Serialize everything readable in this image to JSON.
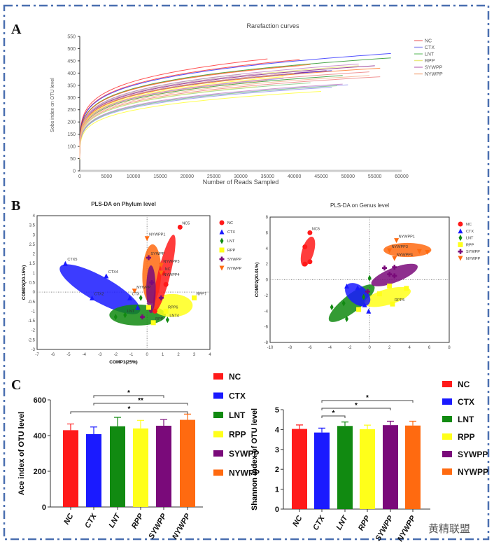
{
  "panels": {
    "a": "A",
    "b": "B",
    "c": "C"
  },
  "watermark": "黄精联盟",
  "groups": [
    "NC",
    "CTX",
    "LNT",
    "RPP",
    "SYWPP",
    "NYWPP"
  ],
  "colors": {
    "NC": "#ff1a1a",
    "CTX": "#1a1aff",
    "LNT": "#118a11",
    "RPP": "#ffff1a",
    "SYWPP": "#7a0a7a",
    "NYWPP": "#ff6a10"
  },
  "pale_colors": {
    "NC": "#f08a8a",
    "CTX": "#9a9af0",
    "LNT": "#8ccf8c",
    "RPP": "#eaea80",
    "SYWPP": "#c88ac8",
    "NYWPP": "#f6b896"
  },
  "chart_data": [
    {
      "type": "line",
      "title": "Rarefaction curves",
      "xlabel": "Number of Reads Sampled",
      "ylabel": "Sobs index on OTU level",
      "xlim": [
        0,
        60000
      ],
      "ylim": [
        0,
        550
      ],
      "xticks": [
        0,
        5000,
        10000,
        15000,
        20000,
        25000,
        30000,
        35000,
        40000,
        45000,
        50000,
        55000,
        60000
      ],
      "yticks": [
        0,
        50,
        100,
        150,
        200,
        250,
        300,
        350,
        400,
        450,
        500,
        550
      ],
      "legend": [
        "NC",
        "CTX",
        "LNT",
        "RPP",
        "SYWPP",
        "NYWPP"
      ],
      "legend_position": "top-right",
      "curves": [
        {
          "group": "NC",
          "max_reads": 35000,
          "final": 458
        },
        {
          "group": "NC",
          "max_reads": 41000,
          "final": 455
        },
        {
          "group": "NC",
          "max_reads": 54000,
          "final": 405
        },
        {
          "group": "NC",
          "max_reads": 56000,
          "final": 385
        },
        {
          "group": "NC",
          "max_reads": 41000,
          "final": 430
        },
        {
          "group": "CTX",
          "max_reads": 58000,
          "final": 480
        },
        {
          "group": "CTX",
          "max_reads": 47000,
          "final": 410
        },
        {
          "group": "CTX",
          "max_reads": 47000,
          "final": 342
        },
        {
          "group": "CTX",
          "max_reads": 38000,
          "final": 378
        },
        {
          "group": "CTX",
          "max_reads": 50000,
          "final": 352
        },
        {
          "group": "LNT",
          "max_reads": 58000,
          "final": 462
        },
        {
          "group": "LNT",
          "max_reads": 49000,
          "final": 390
        },
        {
          "group": "LNT",
          "max_reads": 43000,
          "final": 360
        },
        {
          "group": "LNT",
          "max_reads": 48000,
          "final": 348
        },
        {
          "group": "LNT",
          "max_reads": 30000,
          "final": 395
        },
        {
          "group": "RPP",
          "max_reads": 45000,
          "final": 325
        },
        {
          "group": "RPP",
          "max_reads": 38000,
          "final": 385
        },
        {
          "group": "RPP",
          "max_reads": 52000,
          "final": 430
        },
        {
          "group": "RPP",
          "max_reads": 40000,
          "final": 395
        },
        {
          "group": "RPP",
          "max_reads": 33000,
          "final": 345
        },
        {
          "group": "SYWPP",
          "max_reads": 46000,
          "final": 410
        },
        {
          "group": "SYWPP",
          "max_reads": 55000,
          "final": 430
        },
        {
          "group": "SYWPP",
          "max_reads": 52000,
          "final": 437
        },
        {
          "group": "SYWPP",
          "max_reads": 34000,
          "final": 398
        },
        {
          "group": "SYWPP",
          "max_reads": 49000,
          "final": 355
        },
        {
          "group": "NYWPP",
          "max_reads": 43000,
          "final": 435
        },
        {
          "group": "NYWPP",
          "max_reads": 56000,
          "final": 420
        },
        {
          "group": "NYWPP",
          "max_reads": 40000,
          "final": 400
        },
        {
          "group": "NYWPP",
          "max_reads": 35000,
          "final": 370
        },
        {
          "group": "NYWPP",
          "max_reads": 54000,
          "final": 390
        }
      ]
    },
    {
      "type": "scatter",
      "title": "PLS-DA on Phylum level",
      "xlabel": "COMP1(25%)",
      "ylabel": "COMP2(20.15%)",
      "xlim": [
        -7,
        4
      ],
      "ylim": [
        -3,
        4
      ],
      "xticks": [
        -7,
        -6,
        -5,
        -4,
        -3,
        -2,
        -1,
        0,
        1,
        2,
        3,
        4
      ],
      "yticks": [
        -3,
        -2.5,
        -2,
        -1.5,
        -1,
        -0.5,
        0,
        0.5,
        1,
        1.5,
        2,
        2.5,
        3,
        3.5,
        4
      ],
      "legend": [
        "NC",
        "CTX",
        "LNT",
        "RPP",
        "SYWPP",
        "NYWPP"
      ],
      "legend_position": "right",
      "ellipses": [
        {
          "group": "CTX",
          "center": [
            -3,
            0.15
          ],
          "axis1": [
            2.55,
            -1.15
          ],
          "axis2": [
            0.3,
            0.62
          ]
        },
        {
          "group": "LNT",
          "center": [
            -0.6,
            -1.2
          ],
          "axis1": [
            1.8,
            0
          ],
          "axis2": [
            0,
            0.55
          ]
        },
        {
          "group": "RPP",
          "center": [
            1.6,
            -0.7
          ],
          "axis1": [
            1.3,
            0
          ],
          "axis2": [
            0,
            0.6
          ]
        },
        {
          "group": "NYWPP",
          "center": [
            0.3,
            0.95
          ],
          "axis1": [
            0.05,
            1.55
          ],
          "axis2": [
            0.6,
            0
          ]
        },
        {
          "group": "NC",
          "center": [
            1.1,
            1.0
          ],
          "axis1": [
            0.6,
            2.0
          ],
          "axis2": [
            0.38,
            -0.1
          ]
        },
        {
          "group": "SYWPP",
          "center": [
            0.25,
            0.15
          ],
          "axis1": [
            0,
            1.25
          ],
          "axis2": [
            0.3,
            0
          ]
        }
      ],
      "points": [
        {
          "group": "NC",
          "label": "NC5",
          "x": 2.1,
          "y": 3.4
        },
        {
          "group": "NC",
          "label": "NC",
          "x": 1.0,
          "y": 1.0
        },
        {
          "group": "NC",
          "label": "",
          "x": 0.5,
          "y": -1.0
        },
        {
          "group": "NC",
          "label": "",
          "x": 1.2,
          "y": 0.4
        },
        {
          "group": "CTX",
          "label": "CTX5",
          "x": -5.2,
          "y": 1.5
        },
        {
          "group": "CTX",
          "label": "CTX4",
          "x": -2.6,
          "y": 0.85
        },
        {
          "group": "CTX",
          "label": "CTX2",
          "x": -3.5,
          "y": -0.3
        },
        {
          "group": "CTX",
          "label": "CTX",
          "x": -1.1,
          "y": -0.3
        },
        {
          "group": "CTX",
          "label": "",
          "x": -0.6,
          "y": -0.8
        },
        {
          "group": "LNT",
          "label": "LNT",
          "x": -1.4,
          "y": -1.2
        },
        {
          "group": "LNT",
          "label": "LNT4",
          "x": 1.3,
          "y": -1.45
        },
        {
          "group": "LNT",
          "label": "",
          "x": -0.4,
          "y": -0.3
        },
        {
          "group": "LNT",
          "label": "",
          "x": -2.0,
          "y": -1.3
        },
        {
          "group": "RPP",
          "label": "RPP7",
          "x": 3.0,
          "y": -0.3
        },
        {
          "group": "RPP",
          "label": "RPP6",
          "x": 1.2,
          "y": -1.0
        },
        {
          "group": "RPP",
          "label": "RPP",
          "x": 0.4,
          "y": -1.6
        },
        {
          "group": "RPP",
          "label": "",
          "x": 0.1,
          "y": -0.8
        },
        {
          "group": "SYWPP",
          "label": "SYWPP",
          "x": 0.1,
          "y": 1.8
        },
        {
          "group": "SYWPP",
          "label": "",
          "x": 0.9,
          "y": -0.3
        },
        {
          "group": "SYWPP",
          "label": "",
          "x": -0.3,
          "y": -1.3
        },
        {
          "group": "SYWPP",
          "label": "",
          "x": 0.3,
          "y": 0.5
        },
        {
          "group": "NYWPP",
          "label": "NYWPP1",
          "x": 0.0,
          "y": 2.8
        },
        {
          "group": "NYWPP",
          "label": "NYWPP3",
          "x": 0.9,
          "y": 1.4
        },
        {
          "group": "NYWPP",
          "label": "NYWPP",
          "x": -0.8,
          "y": 0.05
        },
        {
          "group": "NYWPP",
          "label": "NYWPP4",
          "x": 0.9,
          "y": 1.0
        }
      ]
    },
    {
      "type": "scatter",
      "title": "PLS-DA on Genus level",
      "ylabel": "COMP2(20.01%)",
      "xlim": [
        -10,
        8
      ],
      "ylim": [
        -8,
        8
      ],
      "xticks": [
        -10,
        -8,
        -6,
        -4,
        -2,
        0,
        2,
        4,
        6,
        8
      ],
      "yticks": [
        -8,
        -6,
        -4,
        -2,
        0,
        2,
        4,
        6,
        8
      ],
      "legend": [
        "NC",
        "CTX",
        "LNT",
        "RPP",
        "SYWPP",
        "NYWPP"
      ],
      "legend_position": "right",
      "ellipses": [
        {
          "group": "NC",
          "center": [
            -6.2,
            3.6
          ],
          "axis1": [
            0.4,
            1.9
          ],
          "axis2": [
            0.6,
            -0.1
          ]
        },
        {
          "group": "NYWPP",
          "center": [
            3.8,
            3.8
          ],
          "axis1": [
            2.4,
            0
          ],
          "axis2": [
            0,
            0.9
          ]
        },
        {
          "group": "LNT",
          "center": [
            -1.8,
            -3
          ],
          "axis1": [
            2.2,
            2.3
          ],
          "axis2": [
            0.7,
            -0.7
          ]
        },
        {
          "group": "RPP",
          "center": [
            1.8,
            -2.2
          ],
          "axis1": [
            2.3,
            0.9
          ],
          "axis2": [
            -0.4,
            0.9
          ]
        },
        {
          "group": "CTX",
          "center": [
            -1.2,
            -1.9
          ],
          "axis1": [
            -0.9,
            1.4
          ],
          "axis2": [
            0.9,
            0.5
          ]
        },
        {
          "group": "SYWPP",
          "center": [
            2.5,
            0.6
          ],
          "axis1": [
            2.3,
            1.2
          ],
          "axis2": [
            -0.4,
            0.8
          ]
        }
      ],
      "points": [
        {
          "group": "NC",
          "label": "NC5",
          "x": -6,
          "y": 6
        },
        {
          "group": "NC",
          "label": "",
          "x": -6.5,
          "y": 4.2
        },
        {
          "group": "NC",
          "label": "",
          "x": -6.5,
          "y": 2
        },
        {
          "group": "NC",
          "label": "",
          "x": -6,
          "y": 2.3
        },
        {
          "group": "NYWPP",
          "label": "NYWPP1",
          "x": 2.7,
          "y": 5
        },
        {
          "group": "NYWPP",
          "label": "NYWPP3",
          "x": 2,
          "y": 3.7
        },
        {
          "group": "NYWPP",
          "label": "NYWPP4",
          "x": 2.5,
          "y": 2.7
        },
        {
          "group": "NYWPP",
          "label": "",
          "x": 5,
          "y": 3.6
        },
        {
          "group": "NYWPP",
          "label": "",
          "x": 5.8,
          "y": 3.5
        },
        {
          "group": "SYWPP",
          "label": "",
          "x": 1.5,
          "y": 1.5
        },
        {
          "group": "SYWPP",
          "label": "",
          "x": 2.5,
          "y": 1.6
        },
        {
          "group": "SYWPP",
          "label": "",
          "x": 2.5,
          "y": 0.5
        },
        {
          "group": "SYWPP",
          "label": "",
          "x": 2,
          "y": 0.7
        },
        {
          "group": "SYWPP",
          "label": "",
          "x": -0.2,
          "y": -1.5
        },
        {
          "group": "CTX",
          "label": "",
          "x": -2.3,
          "y": -0.8
        },
        {
          "group": "CTX",
          "label": "",
          "x": -1.2,
          "y": -1
        },
        {
          "group": "CTX",
          "label": "",
          "x": -0.1,
          "y": -4
        },
        {
          "group": "CTX",
          "label": "",
          "x": -0.5,
          "y": -3.2
        },
        {
          "group": "LNT",
          "label": "",
          "x": -3.8,
          "y": -3.5
        },
        {
          "group": "LNT",
          "label": "",
          "x": -2.6,
          "y": -3
        },
        {
          "group": "LNT",
          "label": "",
          "x": -2.3,
          "y": -5
        },
        {
          "group": "LNT",
          "label": "",
          "x": -0.6,
          "y": -2.2
        },
        {
          "group": "LNT",
          "label": "",
          "x": 0,
          "y": 0.2
        },
        {
          "group": "RPP",
          "label": "",
          "x": 3.7,
          "y": -1.1
        },
        {
          "group": "RPP",
          "label": "RPP5",
          "x": 2.3,
          "y": -3.1
        },
        {
          "group": "RPP",
          "label": "",
          "x": -1.1,
          "y": -3.8
        },
        {
          "group": "RPP",
          "label": "",
          "x": 1,
          "y": -1.8
        },
        {
          "group": "RPP",
          "label": "",
          "x": 2,
          "y": -0.8
        }
      ]
    },
    {
      "type": "bar",
      "ylabel": "Ace index of OTU level",
      "categories": [
        "NC",
        "CTX",
        "LNT",
        "RPP",
        "SYWPP",
        "NYWPP"
      ],
      "values": [
        430,
        408,
        452,
        440,
        455,
        488
      ],
      "errors": [
        35,
        40,
        50,
        45,
        35,
        32
      ],
      "ylim": [
        0,
        600
      ],
      "yticks": [
        0,
        200,
        400,
        600
      ],
      "significance": [
        {
          "from": "CTX",
          "to": "SYWPP",
          "label": "*"
        },
        {
          "from": "CTX",
          "to": "NYWPP",
          "label": "**"
        },
        {
          "from": "NC",
          "to": "NYWPP",
          "label": "*"
        }
      ],
      "legend": [
        "NC",
        "CTX",
        "LNT",
        "RPP",
        "SYWPP",
        "NYWPP"
      ]
    },
    {
      "type": "bar",
      "ylabel": "Shannon index of OTU level",
      "categories": [
        "NC",
        "CTX",
        "LNT",
        "RPP",
        "SYWPP",
        "NYWPP"
      ],
      "values": [
        4.03,
        3.85,
        4.18,
        4.02,
        4.22,
        4.2
      ],
      "errors": [
        0.2,
        0.22,
        0.2,
        0.2,
        0.2,
        0.22
      ],
      "ylim": [
        0,
        5
      ],
      "yticks": [
        0,
        1,
        2,
        3,
        4,
        5
      ],
      "significance": [
        {
          "from": "CTX",
          "to": "LNT",
          "label": "*"
        },
        {
          "from": "CTX",
          "to": "SYWPP",
          "label": "*"
        },
        {
          "from": "CTX",
          "to": "NYWPP",
          "label": "*"
        }
      ],
      "legend": [
        "NC",
        "CTX",
        "LNT",
        "RPP",
        "SYWPP",
        "NYWPP"
      ]
    }
  ]
}
